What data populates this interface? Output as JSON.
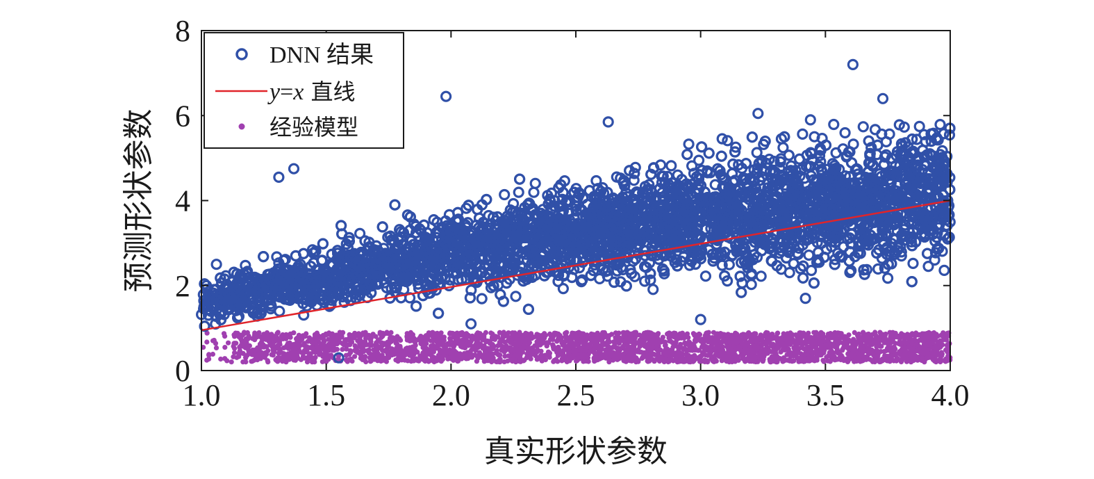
{
  "chart_data": {
    "type": "scatter",
    "title": "",
    "xlabel": "真实形状参数",
    "ylabel": "预测形状参数",
    "xlim": [
      1.0,
      4.0
    ],
    "ylim": [
      0,
      8
    ],
    "x_ticks": [
      "1.0",
      "1.5",
      "2.0",
      "2.5",
      "3.0",
      "3.5",
      "4.0"
    ],
    "y_ticks": [
      "0",
      "2",
      "4",
      "6",
      "8"
    ],
    "grid": false,
    "legend_position": "top-left",
    "series": [
      {
        "name": "DNN 结果",
        "marker": "circle-open",
        "color": "#3050a8",
        "trend": {
          "x": [
            1.0,
            1.5,
            2.0,
            2.5,
            3.0,
            3.5,
            4.0
          ],
          "y_mean": [
            1.6,
            2.2,
            2.8,
            3.2,
            3.6,
            3.9,
            4.1
          ]
        },
        "outliers": [
          {
            "x": 1.98,
            "y": 6.45
          },
          {
            "x": 3.61,
            "y": 7.2
          },
          {
            "x": 3.73,
            "y": 6.4
          },
          {
            "x": 3.23,
            "y": 6.05
          },
          {
            "x": 2.63,
            "y": 5.85
          },
          {
            "x": 3.44,
            "y": 5.9
          },
          {
            "x": 1.31,
            "y": 4.55
          },
          {
            "x": 1.37,
            "y": 4.75
          },
          {
            "x": 1.55,
            "y": 0.3
          },
          {
            "x": 3.0,
            "y": 1.2
          },
          {
            "x": 2.08,
            "y": 1.1
          },
          {
            "x": 3.42,
            "y": 1.7
          },
          {
            "x": 1.01,
            "y": 1.5
          },
          {
            "x": 1.02,
            "y": 2.0
          },
          {
            "x": 1.06,
            "y": 2.5
          }
        ]
      },
      {
        "name": "y=x 直线",
        "name_parts": {
          "y": "y",
          "eq": "=",
          "x": "x",
          "suffix": " 直线"
        },
        "type": "line",
        "color": "#e0242a",
        "x": [
          1.0,
          4.0
        ],
        "y": [
          0.95,
          4.0
        ]
      },
      {
        "name": "经验模型",
        "marker": "dot",
        "color": "#a040b0",
        "y_range": [
          0.2,
          0.9
        ],
        "x_range": [
          1.0,
          4.0
        ]
      }
    ]
  }
}
